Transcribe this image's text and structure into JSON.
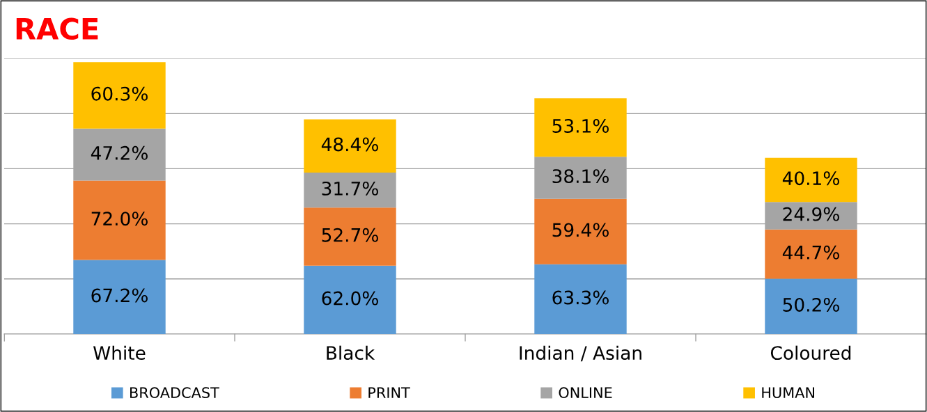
{
  "chart_data": {
    "type": "bar",
    "stacked": true,
    "title": "RACE",
    "categories": [
      "White",
      "Black",
      "Indian / Asian",
      "Coloured"
    ],
    "series": [
      {
        "name": "BROADCAST",
        "color": "#5b9bd5",
        "values": [
          67.2,
          62.0,
          63.3,
          50.2
        ],
        "value_labels": [
          "67.2%",
          "62.0%",
          "63.3%",
          "50.2%"
        ]
      },
      {
        "name": "PRINT",
        "color": "#ed7d31",
        "values": [
          72.0,
          52.7,
          59.4,
          44.7
        ],
        "value_labels": [
          "72.0%",
          "52.7%",
          "59.4%",
          "44.7%"
        ]
      },
      {
        "name": "ONLINE",
        "color": "#a5a5a5",
        "values": [
          47.2,
          31.7,
          38.1,
          24.9
        ],
        "value_labels": [
          "47.2%",
          "31.7%",
          "38.1%",
          "24.9%"
        ]
      },
      {
        "name": "HUMAN",
        "color": "#ffc000",
        "values": [
          60.3,
          48.4,
          53.1,
          40.1
        ],
        "value_labels": [
          "60.3%",
          "48.4%",
          "53.1%",
          "40.1%"
        ]
      }
    ],
    "ylim": [
      0,
      250
    ],
    "yticks": [
      {
        "value": 0,
        "label": null
      },
      {
        "value": 50,
        "label": null
      },
      {
        "value": 100,
        "label": null
      },
      {
        "value": 150,
        "label": null
      },
      {
        "value": 200,
        "label": null
      },
      {
        "value": 250,
        "label": null
      }
    ],
    "tick_labels": "x",
    "grid": "y",
    "legend": "bottom"
  }
}
